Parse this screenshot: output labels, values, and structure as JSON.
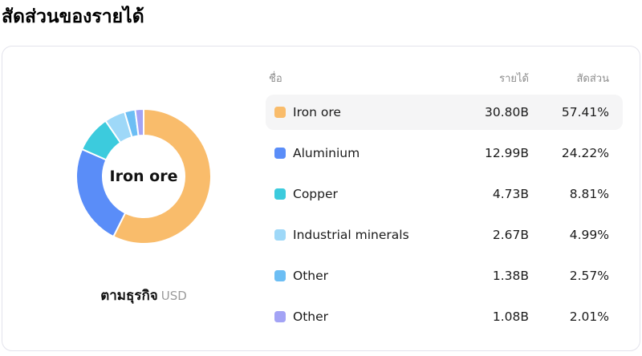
{
  "page": {
    "title": "สัดส่วนของรายได้"
  },
  "chart_data": {
    "type": "pie",
    "donut": true,
    "title": "สัดส่วนของรายได้",
    "center_label": "Iron ore",
    "footer_label": "ตามธุรกิจ",
    "footer_unit": "USD",
    "start_angle": "top",
    "direction": "clockwise",
    "categories": [
      "Iron ore",
      "Aluminium",
      "Copper",
      "Industrial minerals",
      "Other",
      "Other"
    ],
    "values_billion_usd": [
      30.8,
      12.99,
      4.73,
      2.67,
      1.38,
      1.08
    ],
    "percentages": [
      57.41,
      24.22,
      8.81,
      4.99,
      2.57,
      2.01
    ],
    "colors": [
      "#F9BC6B",
      "#5A8DF8",
      "#3CCBDD",
      "#9ED8F8",
      "#6CBEF4",
      "#A3A3F5"
    ],
    "legend_position": "right-table"
  },
  "table": {
    "headers": {
      "name": "ชื่อ",
      "revenue": "รายได้",
      "share": "สัดส่วน"
    },
    "rows": [
      {
        "name": "Iron ore",
        "revenue": "30.80B",
        "share": "57.41%",
        "color": "#F9BC6B",
        "highlighted": true
      },
      {
        "name": "Aluminium",
        "revenue": "12.99B",
        "share": "24.22%",
        "color": "#5A8DF8",
        "highlighted": false
      },
      {
        "name": "Copper",
        "revenue": "4.73B",
        "share": "8.81%",
        "color": "#3CCBDD",
        "highlighted": false
      },
      {
        "name": "Industrial minerals",
        "revenue": "2.67B",
        "share": "4.99%",
        "color": "#9ED8F8",
        "highlighted": false
      },
      {
        "name": "Other",
        "revenue": "1.38B",
        "share": "2.57%",
        "color": "#6CBEF4",
        "highlighted": false
      },
      {
        "name": "Other",
        "revenue": "1.08B",
        "share": "2.01%",
        "color": "#A3A3F5",
        "highlighted": false
      }
    ]
  }
}
